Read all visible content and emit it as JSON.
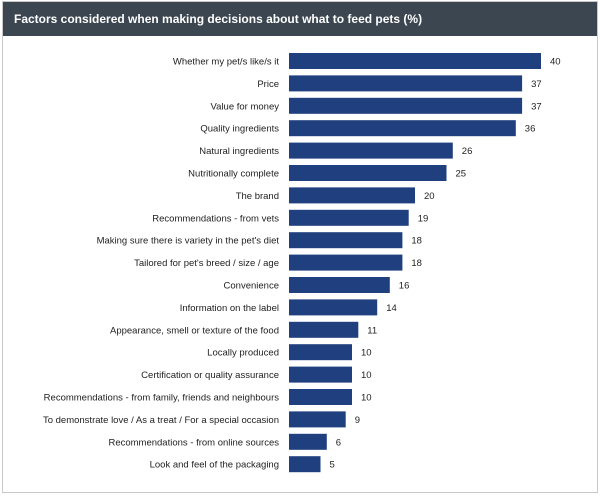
{
  "chart_data": {
    "type": "bar",
    "orientation": "horizontal",
    "title": "Factors considered when making decisions about what to feed pets (%)",
    "categories": [
      "Whether my pet/s like/s it",
      "Price",
      "Value for money",
      "Quality ingredients",
      "Natural ingredients",
      "Nutritionally complete",
      "The brand",
      "Recommendations - from vets",
      "Making sure there is variety in the pet's diet",
      "Tailored for pet's breed / size / age",
      "Convenience",
      "Information on the label",
      "Appearance, smell or texture of the food",
      "Locally produced",
      "Certification or quality assurance",
      "Recommendations - from family, friends and neighbours",
      "To demonstrate love / As a treat / For a special occasion",
      "Recommendations - from online sources",
      "Look and feel of the packaging"
    ],
    "values": [
      40,
      37,
      37,
      36,
      26,
      25,
      20,
      19,
      18,
      18,
      16,
      14,
      11,
      10,
      10,
      10,
      9,
      6,
      5
    ],
    "bar_color": "#1f3f7f",
    "grid": false,
    "legend": "none"
  }
}
